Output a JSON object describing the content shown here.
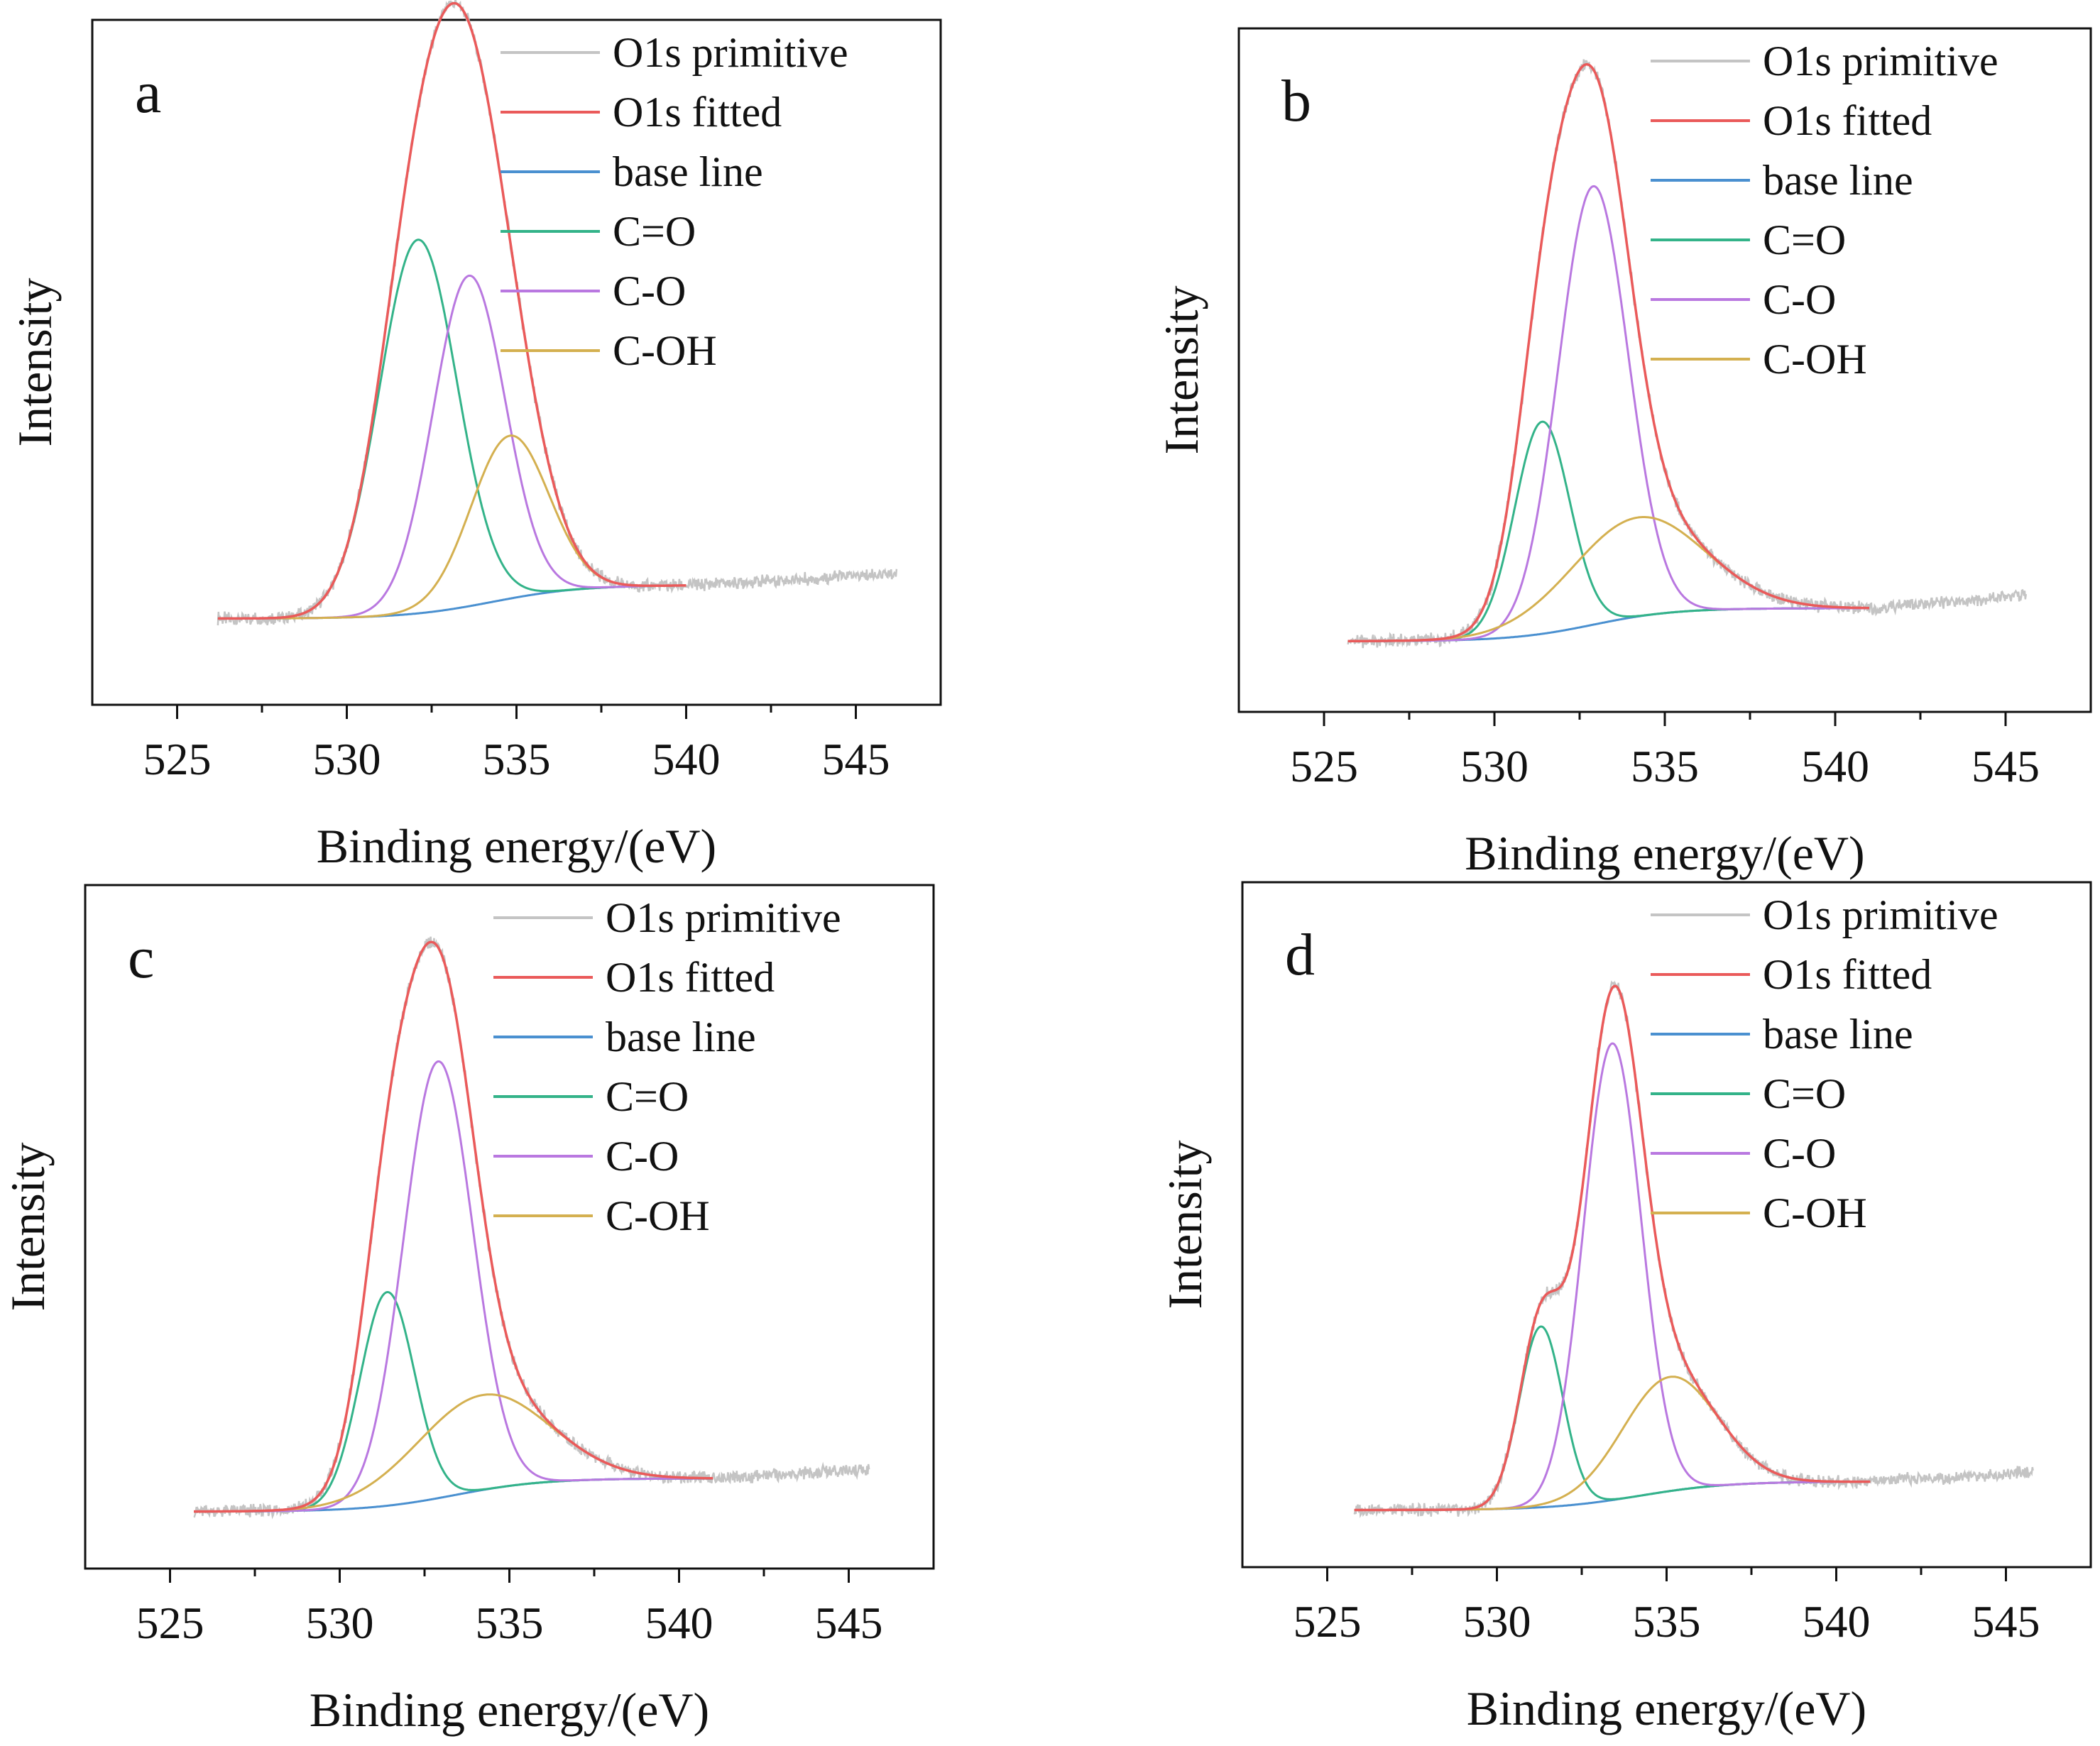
{
  "chart_data": [
    {
      "type": "line",
      "panel": "a",
      "xlabel": "Binding energy/(eV)",
      "ylabel": "Intensity",
      "xlim": [
        522.5,
        547.5
      ],
      "ylim": [
        -0.18,
        1.25
      ],
      "xticks": [
        525,
        530,
        535,
        540,
        545
      ],
      "grid": false,
      "legend_position": "top-right",
      "legend": [
        "O1s primitive",
        "O1s fitted",
        "base line",
        "C=O",
        "C-O",
        "C-OH"
      ],
      "range": [
        526.2,
        540.0
      ],
      "primitive_range": [
        526.2,
        546.2
      ],
      "baseline": {
        "low": 0.0,
        "high": 0.07,
        "center": 534.3,
        "width": 1.3,
        "tail_slope": 0.004
      },
      "peaks": [
        {
          "name": "C=O",
          "center": 532.1,
          "height": 0.78,
          "fwhm": 2.7
        },
        {
          "name": "C-O",
          "center": 533.6,
          "height": 0.69,
          "fwhm": 2.5
        },
        {
          "name": "C-OH",
          "center": 534.8,
          "height": 0.34,
          "fwhm": 2.7
        }
      ]
    },
    {
      "type": "line",
      "panel": "b",
      "xlabel": "Binding energy/(eV)",
      "ylabel": "Intensity",
      "xlim": [
        522.5,
        547.5
      ],
      "ylim": [
        -0.15,
        1.3
      ],
      "xticks": [
        525,
        530,
        535,
        540,
        545
      ],
      "grid": false,
      "legend_position": "top-right",
      "legend": [
        "O1s primitive",
        "O1s fitted",
        "base line",
        "C=O",
        "C-O",
        "C-OH"
      ],
      "range": [
        525.7,
        541.0
      ],
      "primitive_range": [
        525.7,
        545.6
      ],
      "baseline": {
        "low": 0.0,
        "high": 0.07,
        "center": 532.9,
        "width": 1.2,
        "tail_slope": 0.006
      },
      "peaks": [
        {
          "name": "C=O",
          "center": 531.4,
          "height": 0.45,
          "fwhm": 1.9
        },
        {
          "name": "C-O",
          "center": 532.9,
          "height": 0.93,
          "fwhm": 2.4
        },
        {
          "name": "C-OH",
          "center": 534.2,
          "height": 0.21,
          "fwhm": 4.6
        }
      ]
    },
    {
      "type": "line",
      "panel": "c",
      "xlabel": "Binding energy/(eV)",
      "ylabel": "Intensity",
      "xlim": [
        522.5,
        547.5
      ],
      "ylim": [
        -0.12,
        1.32
      ],
      "xticks": [
        525,
        530,
        535,
        540,
        545
      ],
      "grid": false,
      "legend_position": "top-right",
      "legend": [
        "O1s primitive",
        "O1s fitted",
        "base line",
        "C=O",
        "C-O",
        "C-OH"
      ],
      "range": [
        525.7,
        541.0
      ],
      "primitive_range": [
        525.7,
        545.6
      ],
      "baseline": {
        "low": 0.0,
        "high": 0.07,
        "center": 533.4,
        "width": 1.3,
        "tail_slope": 0.004
      },
      "peaks": [
        {
          "name": "C=O",
          "center": 531.4,
          "height": 0.45,
          "fwhm": 1.9
        },
        {
          "name": "C-O",
          "center": 532.9,
          "height": 0.92,
          "fwhm": 2.4
        },
        {
          "name": "C-OH",
          "center": 534.2,
          "height": 0.2,
          "fwhm": 4.6
        }
      ]
    },
    {
      "type": "line",
      "panel": "d",
      "xlabel": "Binding energy/(eV)",
      "ylabel": "Intensity",
      "xlim": [
        522.5,
        547.5
      ],
      "ylim": [
        -0.12,
        1.32
      ],
      "xticks": [
        525,
        530,
        535,
        540,
        545
      ],
      "grid": false,
      "legend_position": "top-right",
      "legend": [
        "O1s primitive",
        "O1s fitted",
        "base line",
        "C=O",
        "C-O",
        "C-OH"
      ],
      "range": [
        525.8,
        541.0
      ],
      "primitive_range": [
        525.8,
        545.8
      ],
      "baseline": {
        "low": 0.0,
        "high": 0.06,
        "center": 534.2,
        "width": 1.3,
        "tail_slope": 0.004
      },
      "peaks": [
        {
          "name": "C=O",
          "center": 531.3,
          "height": 0.38,
          "fwhm": 1.5
        },
        {
          "name": "C-O",
          "center": 533.4,
          "height": 0.96,
          "fwhm": 2.0
        },
        {
          "name": "C-OH",
          "center": 535.1,
          "height": 0.24,
          "fwhm": 3.3
        }
      ]
    }
  ],
  "colors": {
    "O1s primitive": "#c4c4c4",
    "O1s fitted": "#ea5a5a",
    "base line": "#4a90d0",
    "C=O": "#33b389",
    "C-O": "#b978e0",
    "C-OH": "#d4b050"
  }
}
